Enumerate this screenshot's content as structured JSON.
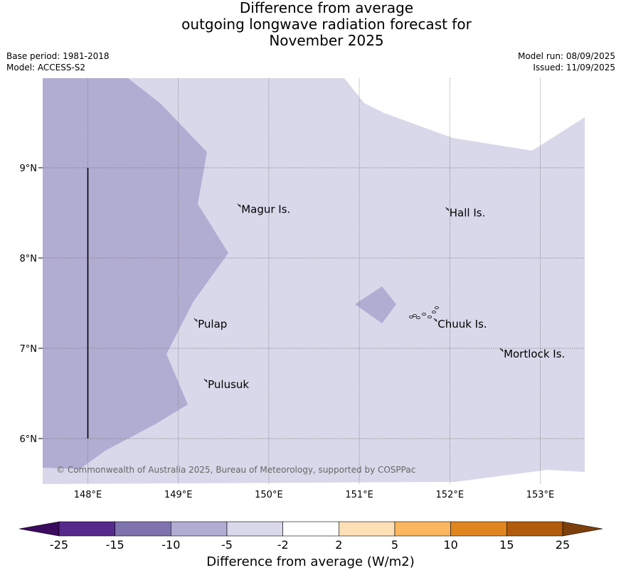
{
  "title": {
    "line1": "Difference from average",
    "line2": "outgoing longwave radiation forecast for",
    "line3": "November 2025"
  },
  "meta": {
    "base_period": "Base period: 1981-2018",
    "model": "Model: ACCESS-S2",
    "model_run": "Model run: 08/09/2025",
    "issued": "Issued: 11/09/2025"
  },
  "copyright": "© Commonwealth of Australia 2025, Bureau of Meteorology, supported by COSPPac",
  "map": {
    "lon_range": [
      147.5,
      153.5
    ],
    "lat_range": [
      5.5,
      10.0
    ],
    "lon_ticks": [
      148,
      149,
      150,
      151,
      152,
      153
    ],
    "lon_tick_labels": [
      "148°E",
      "149°E",
      "150°E",
      "151°E",
      "152°E",
      "153°E"
    ],
    "lat_ticks": [
      6,
      7,
      8,
      9
    ],
    "lat_tick_labels": [
      "6°N",
      "7°N",
      "8°N",
      "9°N"
    ],
    "places": [
      {
        "name": "Magur Is.",
        "lon": 149.68,
        "lat": 8.57
      },
      {
        "name": "Hall Is.",
        "lon": 151.98,
        "lat": 8.53
      },
      {
        "name": "Pulap",
        "lon": 149.2,
        "lat": 7.3
      },
      {
        "name": "Chuuk Is.",
        "lon": 151.85,
        "lat": 7.3
      },
      {
        "name": "Mortlock Is.",
        "lon": 152.58,
        "lat": 6.97
      },
      {
        "name": "Pulusuk",
        "lon": 149.31,
        "lat": 6.63
      }
    ],
    "shading": [
      {
        "category": "-5 to -2",
        "color": "#d8d8ea"
      },
      {
        "category": "-10 to -5",
        "color": "#b1acd2"
      }
    ]
  },
  "colorbar": {
    "label": "Difference from average (W/m2)",
    "ticks": [
      "-25",
      "-15",
      "-10",
      "-5",
      "-2",
      "2",
      "5",
      "10",
      "15",
      "25"
    ],
    "under_color": "#3c0a5e",
    "over_color": "#7d3f0b",
    "colors": [
      "#562a8b",
      "#7e73ae",
      "#b1acd2",
      "#d8d8ea",
      "#ffffff",
      "#fde0b5",
      "#fcb660",
      "#e1861e",
      "#b25b0c"
    ]
  }
}
